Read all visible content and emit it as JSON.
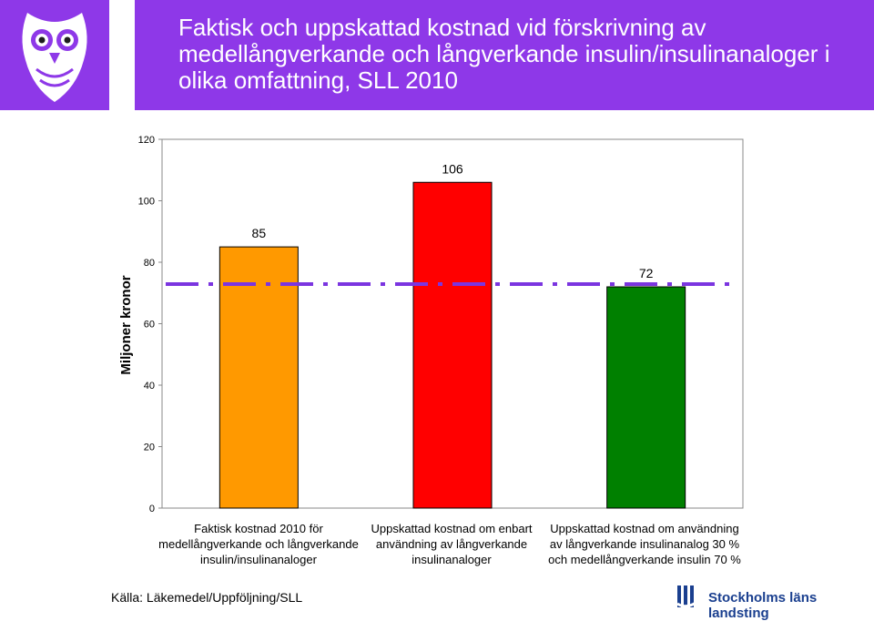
{
  "header": {
    "title": "Faktisk och uppskattad kostnad vid förskrivning av medellångverkande och långverkande insulin/insulinanaloger i olika omfattning, SLL 2010"
  },
  "colors": {
    "header_bg": "#8e38e8",
    "bar_orange": "#ff9900",
    "bar_red": "#ff0000",
    "bar_green": "#008000",
    "reference_line": "#7b35e0"
  },
  "chart_data": {
    "type": "bar",
    "categories": [
      "Faktisk kostnad 2010 för medellångverkande och långverkande insulin/insulinanaloger",
      "Uppskattad kostnad om enbart användning av långverkande insulinanaloger",
      "Uppskattad kostnad om användning av långverkande insulinanalog 30 % och medellångverkande insulin 70 %"
    ],
    "category_label_lines": [
      [
        "Faktisk kostnad 2010 för",
        "medellångverkande och långverkande",
        "insulin/insulinanaloger"
      ],
      [
        "Uppskattad kostnad om enbart",
        "användning av långverkande",
        "insulinanaloger"
      ],
      [
        "Uppskattad kostnad om användning",
        "av långverkande insulinanalog 30 %",
        "och medellångverkande insulin 70 %"
      ]
    ],
    "values": [
      85,
      106,
      72
    ],
    "data_labels": [
      "85",
      "106",
      "72"
    ],
    "bar_colors": [
      "#ff9900",
      "#ff0000",
      "#008000"
    ],
    "reference_line": {
      "value": 72,
      "style": "dash-dot",
      "color": "#7b35e0"
    },
    "title": "",
    "xlabel": "",
    "ylabel": "Miljoner kronor",
    "ylim": [
      0,
      120
    ],
    "yticks": [
      0,
      20,
      40,
      60,
      80,
      100,
      120
    ],
    "grid": false,
    "legend": "none"
  },
  "footer": {
    "source": "Källa: Läkemedel/Uppföljning/SLL",
    "brand": "Stockholms läns landsting"
  }
}
